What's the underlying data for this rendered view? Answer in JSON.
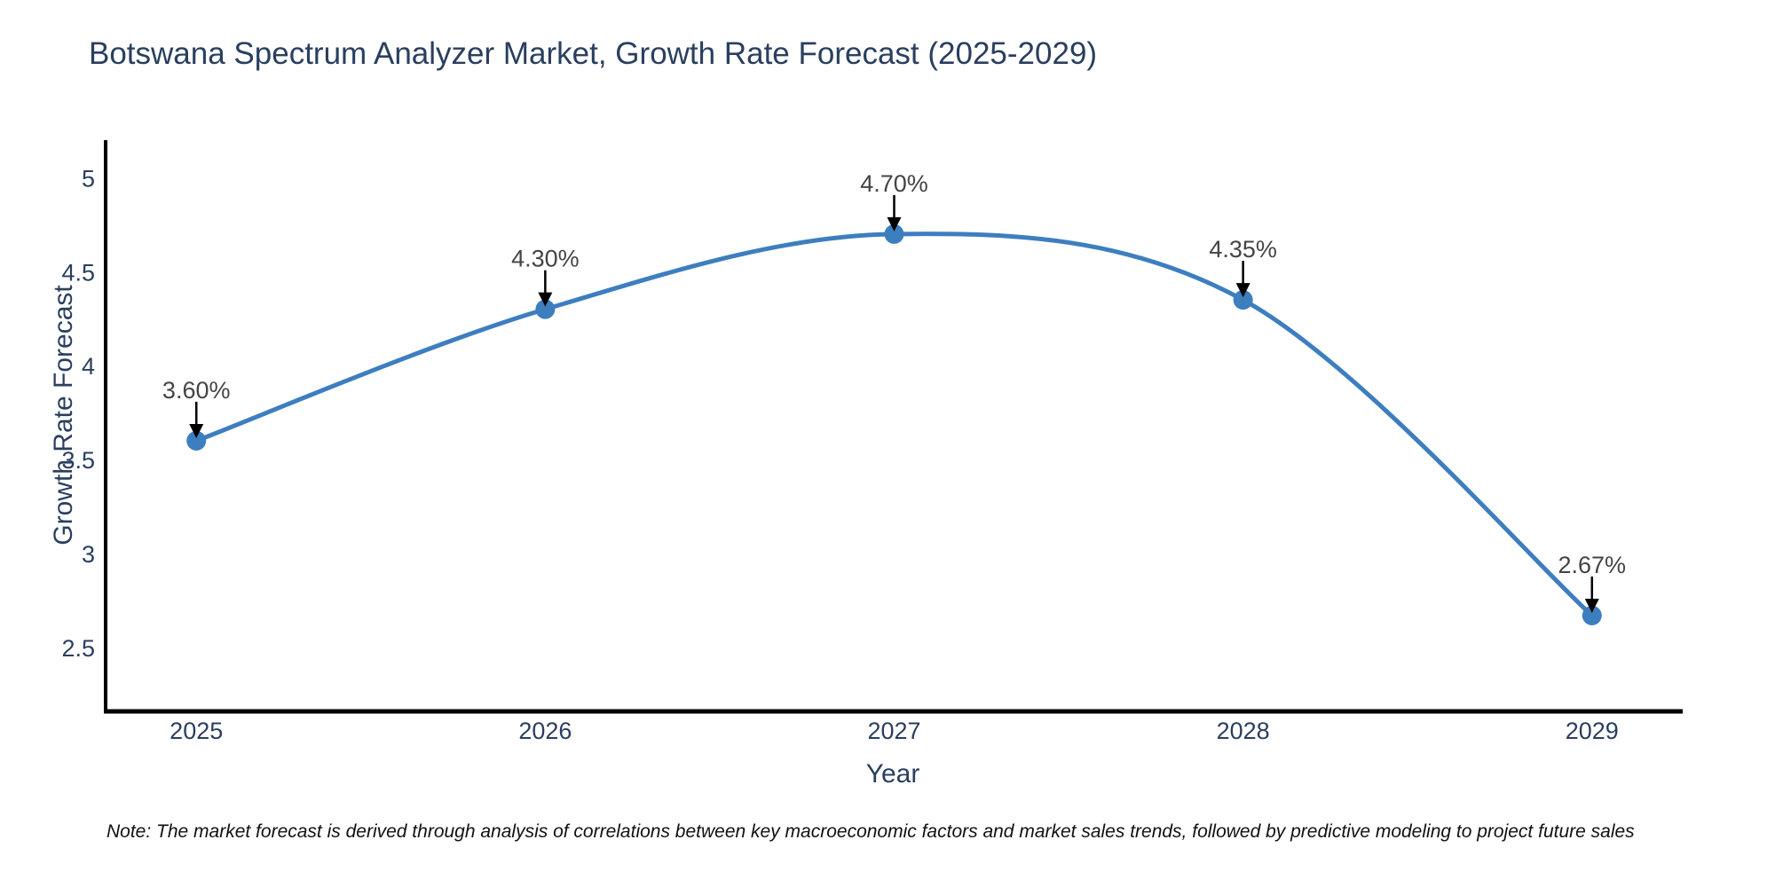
{
  "footnote": "Note: The market forecast is derived through analysis of correlations between key macroeconomic factors and market sales trends, followed by predictive modeling to project future sales",
  "chart_data": {
    "type": "line",
    "title": "Botswana Spectrum Analyzer Market, Growth Rate Forecast (2025-2029)",
    "x": [
      2025,
      2026,
      2027,
      2028,
      2029
    ],
    "values": [
      3.6,
      4.3,
      4.7,
      4.35,
      2.67
    ],
    "point_labels": [
      "3.60%",
      "4.30%",
      "4.70%",
      "4.35%",
      "2.67%"
    ],
    "xlabel": "Year",
    "ylabel": "Growth Rate Forecast",
    "xticks": [
      "2025",
      "2026",
      "2027",
      "2028",
      "2029"
    ],
    "yticks": [
      "2.5",
      "3",
      "3.5",
      "4",
      "4.5",
      "5"
    ],
    "xlim": [
      2024.74,
      2029.26
    ],
    "ylim": [
      2.16,
      5.2
    ],
    "grid": false,
    "legend": "none",
    "line_shape": "spline",
    "colors": {
      "line": "#3d7ebf",
      "marker": "#3d7ebf",
      "axis": "#000000",
      "tick_label": "#2a3f5f",
      "title": "#2a3f5f",
      "annotation": "#444444",
      "arrow": "#000000",
      "background": "#ffffff"
    }
  }
}
